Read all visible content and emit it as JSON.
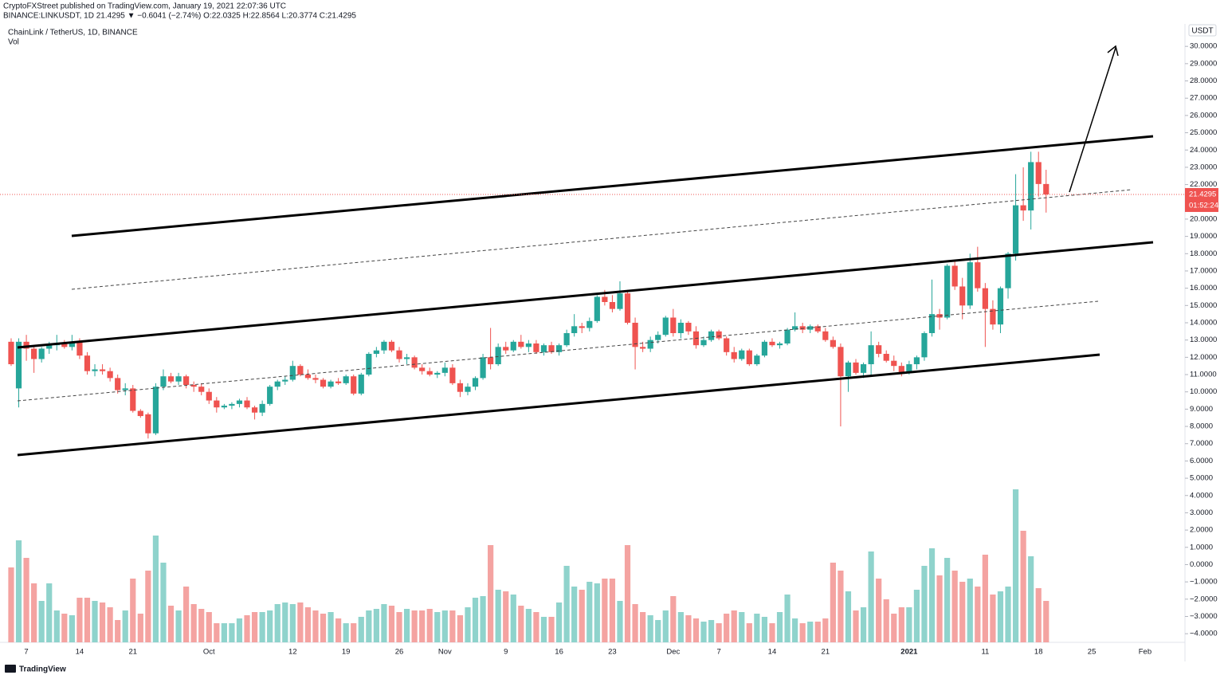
{
  "header": {
    "publisher": "CryptoFXStreet published on TradingView.com, January 19, 2021 22:07:36 UTC",
    "quote": "BINANCE:LINKUSDT, 1D  21.4295 ▼ −0.6041 (−2.74%) O:22.0325 H:22.8564 L:20.3774 C:21.4295",
    "logo": "TradingView"
  },
  "chart_data": {
    "type": "candlestick",
    "title": "ChainLink / TetherUS, 1D, BINANCE",
    "volume_title": "Vol",
    "currency": "USDT",
    "countdown": "01:52:24",
    "up_color": "#26a69a",
    "down_color": "#ef5350",
    "volume_up_color": "#8fd3cc",
    "volume_down_color": "#f4a3a1",
    "categories": [
      null,
      null,
      "7",
      null,
      null,
      null,
      null,
      null,
      null,
      "14",
      null,
      null,
      null,
      null,
      null,
      null,
      "21",
      null,
      null,
      null,
      null,
      null,
      null,
      null,
      null,
      null,
      "Oct",
      null,
      null,
      null,
      null,
      null,
      null,
      null,
      null,
      null,
      null,
      "12",
      null,
      null,
      null,
      null,
      null,
      null,
      "19",
      null,
      null,
      null,
      null,
      null,
      null,
      "26",
      null,
      null,
      null,
      null,
      null,
      "Nov",
      null,
      null,
      null,
      null,
      null,
      null,
      null,
      "9",
      null,
      null,
      null,
      null,
      null,
      null,
      "16",
      null,
      null,
      null,
      null,
      null,
      null,
      "23",
      null,
      null,
      null,
      null,
      null,
      null,
      null,
      "Dec",
      null,
      null,
      null,
      null,
      null,
      "7",
      null,
      null,
      null,
      null,
      null,
      null,
      "14",
      null,
      null,
      null,
      null,
      null,
      null,
      "21",
      null,
      null,
      null,
      null,
      null,
      null,
      null,
      null,
      null,
      null,
      "2021",
      null,
      null,
      null,
      null,
      null,
      null,
      null,
      null,
      null,
      "11",
      null,
      null,
      null,
      null,
      null,
      null,
      "18",
      null,
      null,
      null,
      null,
      null,
      null,
      "25",
      null,
      null,
      null,
      null,
      null,
      null,
      "Feb",
      null,
      null,
      null,
      null,
      null
    ],
    "candles": [
      [
        12.9,
        13.1,
        11.5,
        11.6
      ],
      [
        10.2,
        13.1,
        9.1,
        12.9
      ],
      [
        12.9,
        13.3,
        11.8,
        12.5
      ],
      [
        12.5,
        12.7,
        11.1,
        11.9
      ],
      [
        11.9,
        12.6,
        11.7,
        12.5
      ],
      [
        12.5,
        12.9,
        12.2,
        12.7
      ],
      [
        12.7,
        13.3,
        12.4,
        12.8
      ],
      [
        12.8,
        13.0,
        12.5,
        12.6
      ],
      [
        12.6,
        13.3,
        12.4,
        12.9
      ],
      [
        12.9,
        13.1,
        11.9,
        12.1
      ],
      [
        12.1,
        12.3,
        11.0,
        11.2
      ],
      [
        11.2,
        11.6,
        10.9,
        11.3
      ],
      [
        11.3,
        11.6,
        11.0,
        11.2
      ],
      [
        11.2,
        11.4,
        10.6,
        10.8
      ],
      [
        10.8,
        11.0,
        9.9,
        10.1
      ],
      [
        10.1,
        10.5,
        9.8,
        10.2
      ],
      [
        10.2,
        10.4,
        8.8,
        8.9
      ],
      [
        8.9,
        9.0,
        8.5,
        8.6
      ],
      [
        8.7,
        8.8,
        7.3,
        7.6
      ],
      [
        7.6,
        10.5,
        7.5,
        10.3
      ],
      [
        10.3,
        11.3,
        10.1,
        10.9
      ],
      [
        10.9,
        11.1,
        10.5,
        10.6
      ],
      [
        10.6,
        11.1,
        10.4,
        10.9
      ],
      [
        10.9,
        11.0,
        10.2,
        10.4
      ],
      [
        10.4,
        10.6,
        10.0,
        10.3
      ],
      [
        10.3,
        10.5,
        9.8,
        10.0
      ],
      [
        10.0,
        10.2,
        9.3,
        9.5
      ],
      [
        9.5,
        9.7,
        8.8,
        9.1
      ],
      [
        9.1,
        9.3,
        9.0,
        9.2
      ],
      [
        9.2,
        9.4,
        9.0,
        9.3
      ],
      [
        9.3,
        9.6,
        9.1,
        9.5
      ],
      [
        9.5,
        9.7,
        9.0,
        9.1
      ],
      [
        9.1,
        9.2,
        8.4,
        8.8
      ],
      [
        8.8,
        9.5,
        8.6,
        9.3
      ],
      [
        9.3,
        10.4,
        9.2,
        10.3
      ],
      [
        10.3,
        10.7,
        10.1,
        10.6
      ],
      [
        10.6,
        10.9,
        10.4,
        10.7
      ],
      [
        10.7,
        11.8,
        10.6,
        11.5
      ],
      [
        11.5,
        11.6,
        10.9,
        11.0
      ],
      [
        11.0,
        11.3,
        10.7,
        10.8
      ],
      [
        10.8,
        11.0,
        10.5,
        10.7
      ],
      [
        10.7,
        10.8,
        10.2,
        10.3
      ],
      [
        10.3,
        10.7,
        10.2,
        10.6
      ],
      [
        10.6,
        10.8,
        10.4,
        10.5
      ],
      [
        10.5,
        11.0,
        10.4,
        10.9
      ],
      [
        10.9,
        11.0,
        9.8,
        9.9
      ],
      [
        9.9,
        11.1,
        9.8,
        11.0
      ],
      [
        11.0,
        12.3,
        10.9,
        12.2
      ],
      [
        12.2,
        12.6,
        12.0,
        12.4
      ],
      [
        12.4,
        13.0,
        12.2,
        12.9
      ],
      [
        12.9,
        13.0,
        12.3,
        12.4
      ],
      [
        12.4,
        12.6,
        11.7,
        11.9
      ],
      [
        11.9,
        12.2,
        11.6,
        12.0
      ],
      [
        12.0,
        12.1,
        11.3,
        11.4
      ],
      [
        11.4,
        11.6,
        11.0,
        11.2
      ],
      [
        11.2,
        11.4,
        10.9,
        11.0
      ],
      [
        11.0,
        11.2,
        10.8,
        11.1
      ],
      [
        11.1,
        11.7,
        10.9,
        11.4
      ],
      [
        11.4,
        11.6,
        10.4,
        10.5
      ],
      [
        10.5,
        10.7,
        9.7,
        10.0
      ],
      [
        10.0,
        10.5,
        9.8,
        10.3
      ],
      [
        10.3,
        10.9,
        10.1,
        10.8
      ],
      [
        10.8,
        12.2,
        10.7,
        12.0
      ],
      [
        12.0,
        13.7,
        11.3,
        11.6
      ],
      [
        11.6,
        12.8,
        11.5,
        12.6
      ],
      [
        12.6,
        12.9,
        12.2,
        12.4
      ],
      [
        12.4,
        13.0,
        12.3,
        12.9
      ],
      [
        12.9,
        13.3,
        12.5,
        12.6
      ],
      [
        12.6,
        13.0,
        12.3,
        12.8
      ],
      [
        12.8,
        13.0,
        12.2,
        12.3
      ],
      [
        12.3,
        12.8,
        12.1,
        12.7
      ],
      [
        12.7,
        12.9,
        12.2,
        12.3
      ],
      [
        12.3,
        12.8,
        12.1,
        12.7
      ],
      [
        12.7,
        13.6,
        12.6,
        13.4
      ],
      [
        13.4,
        14.5,
        13.2,
        13.8
      ],
      [
        13.8,
        14.0,
        13.4,
        13.7
      ],
      [
        13.7,
        14.3,
        13.5,
        14.1
      ],
      [
        14.1,
        15.6,
        14.0,
        15.5
      ],
      [
        15.5,
        15.9,
        15.0,
        15.2
      ],
      [
        15.2,
        15.6,
        14.6,
        14.8
      ],
      [
        14.8,
        16.4,
        14.7,
        15.7
      ],
      [
        15.7,
        15.9,
        13.9,
        14.0
      ],
      [
        14.0,
        14.3,
        11.3,
        12.6
      ],
      [
        12.6,
        12.9,
        12.3,
        12.5
      ],
      [
        12.5,
        13.2,
        12.3,
        13.0
      ],
      [
        13.0,
        13.5,
        12.8,
        13.3
      ],
      [
        13.3,
        14.4,
        13.2,
        14.3
      ],
      [
        14.3,
        14.8,
        13.2,
        13.4
      ],
      [
        13.4,
        14.2,
        13.1,
        14.0
      ],
      [
        14.0,
        14.1,
        13.3,
        13.5
      ],
      [
        13.5,
        13.8,
        12.5,
        12.7
      ],
      [
        12.7,
        13.2,
        12.6,
        13.0
      ],
      [
        13.0,
        13.6,
        12.9,
        13.5
      ],
      [
        13.5,
        13.6,
        13.0,
        13.1
      ],
      [
        13.1,
        13.2,
        12.1,
        12.3
      ],
      [
        12.3,
        12.6,
        11.7,
        11.9
      ],
      [
        11.9,
        12.5,
        11.8,
        12.4
      ],
      [
        12.4,
        12.5,
        11.5,
        11.6
      ],
      [
        11.6,
        12.2,
        11.5,
        12.1
      ],
      [
        12.1,
        13.0,
        12.0,
        12.9
      ],
      [
        12.9,
        13.1,
        12.6,
        12.7
      ],
      [
        12.7,
        12.9,
        12.5,
        12.8
      ],
      [
        12.8,
        13.7,
        12.7,
        13.6
      ],
      [
        13.6,
        14.6,
        13.5,
        13.8
      ],
      [
        13.8,
        14.0,
        13.4,
        13.6
      ],
      [
        13.6,
        13.9,
        13.4,
        13.8
      ],
      [
        13.8,
        13.9,
        13.4,
        13.5
      ],
      [
        13.5,
        13.7,
        12.9,
        13.0
      ],
      [
        13.0,
        13.2,
        12.5,
        12.6
      ],
      [
        12.6,
        12.8,
        8.0,
        10.9
      ],
      [
        10.9,
        11.8,
        10.0,
        11.7
      ],
      [
        11.7,
        11.9,
        11.0,
        11.1
      ],
      [
        11.1,
        11.7,
        10.8,
        11.6
      ],
      [
        11.6,
        13.5,
        10.9,
        12.7
      ],
      [
        12.7,
        12.9,
        12.0,
        12.2
      ],
      [
        12.2,
        12.4,
        11.7,
        11.8
      ],
      [
        11.8,
        12.1,
        11.2,
        11.5
      ],
      [
        11.5,
        11.7,
        10.9,
        11.1
      ],
      [
        11.1,
        11.8,
        11.0,
        11.6
      ],
      [
        11.6,
        12.1,
        11.3,
        12.0
      ],
      [
        12.0,
        13.5,
        11.8,
        13.4
      ],
      [
        13.4,
        16.5,
        13.2,
        14.5
      ],
      [
        14.5,
        14.8,
        13.6,
        14.3
      ],
      [
        14.3,
        17.4,
        14.2,
        17.3
      ],
      [
        17.3,
        17.6,
        15.9,
        16.1
      ],
      [
        16.1,
        16.6,
        14.2,
        15.0
      ],
      [
        15.0,
        18.0,
        14.8,
        17.5
      ],
      [
        17.5,
        18.4,
        15.8,
        16.0
      ],
      [
        16.0,
        16.3,
        12.6,
        14.8
      ],
      [
        14.8,
        15.3,
        13.6,
        13.9
      ],
      [
        13.9,
        16.1,
        13.4,
        16.0
      ],
      [
        16.0,
        18.1,
        15.4,
        18.0
      ],
      [
        18.0,
        22.6,
        17.6,
        20.8
      ],
      [
        20.8,
        23.0,
        19.9,
        20.5
      ],
      [
        20.5,
        23.9,
        19.4,
        23.3
      ],
      [
        23.3,
        23.9,
        21.3,
        22.0325
      ],
      [
        22.0325,
        22.8564,
        20.3774,
        21.4295
      ],
      null,
      null,
      null,
      null,
      null,
      null,
      null,
      null,
      null,
      null,
      null,
      null,
      null,
      null,
      null,
      null,
      null,
      null
    ],
    "volume": [
      47,
      64,
      53,
      37,
      26,
      37,
      20,
      18,
      17,
      28,
      28,
      26,
      25,
      22,
      14,
      20,
      40,
      18,
      45,
      67,
      50,
      23,
      20,
      35,
      24,
      21,
      19,
      12,
      12,
      12,
      15,
      17,
      19,
      19,
      20,
      24,
      25,
      24,
      25,
      22,
      20,
      18,
      19,
      15,
      12,
      12,
      16,
      20,
      21,
      24,
      23,
      19,
      21,
      20,
      20,
      21,
      19,
      20,
      20,
      17,
      22,
      28,
      29,
      61,
      33,
      32,
      30,
      23,
      21,
      19,
      16,
      16,
      25,
      48,
      35,
      33,
      38,
      37,
      40,
      40,
      26,
      61,
      24,
      19,
      17,
      14,
      20,
      29,
      19,
      17,
      15,
      13,
      14,
      12,
      18,
      20,
      19,
      12,
      18,
      16,
      12,
      19,
      30,
      15,
      12,
      13,
      13,
      15,
      50,
      45,
      32,
      20,
      22,
      57,
      40,
      27,
      18,
      22,
      22,
      33,
      48,
      59,
      42,
      53,
      45,
      38,
      40,
      35,
      55,
      30,
      32,
      35,
      96,
      70,
      54,
      34,
      26,
      null,
      null,
      null,
      null,
      null,
      null,
      null,
      null,
      null,
      null,
      null,
      null,
      null,
      null,
      null,
      null,
      null,
      null
    ],
    "volume_lim": [
      0,
      100
    ],
    "ylim": [
      -4.5,
      31.3
    ],
    "yticks": [
      {
        "value": 30,
        "label": "30.0000"
      },
      {
        "value": 29,
        "label": "29.0000"
      },
      {
        "value": 28,
        "label": "28.0000"
      },
      {
        "value": 27,
        "label": "27.0000"
      },
      {
        "value": 26,
        "label": "26.0000"
      },
      {
        "value": 25,
        "label": "25.0000"
      },
      {
        "value": 24,
        "label": "24.0000"
      },
      {
        "value": 23,
        "label": "23.0000"
      },
      {
        "value": 22,
        "label": "22.0000"
      },
      {
        "value": 21,
        "label": "21.0000"
      },
      {
        "value": 20,
        "label": "20.0000"
      },
      {
        "value": 19,
        "label": "19.0000"
      },
      {
        "value": 18,
        "label": "18.0000"
      },
      {
        "value": 17,
        "label": "17.0000"
      },
      {
        "value": 16,
        "label": "16.0000"
      },
      {
        "value": 15,
        "label": "15.0000"
      },
      {
        "value": 14,
        "label": "14.0000"
      },
      {
        "value": 13,
        "label": "13.0000"
      },
      {
        "value": 12,
        "label": "12.0000"
      },
      {
        "value": 11,
        "label": "11.0000"
      },
      {
        "value": 10,
        "label": "10.0000"
      },
      {
        "value": 9,
        "label": "9.0000"
      },
      {
        "value": 8,
        "label": "8.0000"
      },
      {
        "value": 7,
        "label": "7.0000"
      },
      {
        "value": 6,
        "label": "6.0000"
      },
      {
        "value": 5,
        "label": "5.0000"
      },
      {
        "value": 4,
        "label": "4.0000"
      },
      {
        "value": 3,
        "label": "3.0000"
      },
      {
        "value": 2,
        "label": "2.0000"
      },
      {
        "value": 1,
        "label": "1.0000"
      },
      {
        "value": 0,
        "label": "0.0000"
      },
      {
        "value": -1,
        "label": "−1.0000"
      },
      {
        "value": -2,
        "label": "−2.0000"
      },
      {
        "value": -3,
        "label": "−3.0000"
      },
      {
        "value": -4,
        "label": "−4.0000"
      }
    ]
  }
}
